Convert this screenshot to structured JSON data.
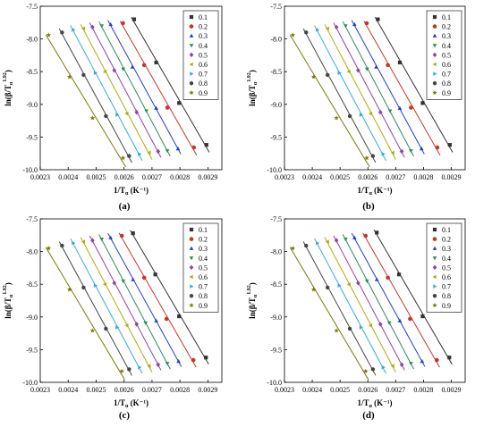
{
  "figure": {
    "panel_labels": [
      "(a)",
      "(b)",
      "(c)",
      "(d)"
    ]
  },
  "chart_data": [
    {
      "type": "scatter",
      "panel": "(a)",
      "xlabel": "1/T",
      "xlabel_sub": "α",
      "xlabel_unit": "(K⁻¹)",
      "ylabel": "ln(β/T",
      "ylabel_sub": "α",
      "ylabel_sup": "1.92",
      "ylabel_close": ")",
      "xlim": [
        0.0023,
        0.00295
      ],
      "ylim": [
        -10.0,
        -7.5
      ],
      "xticks": [
        "0.0023",
        "0.0024",
        "0.0025",
        "0.0026",
        "0.0027",
        "0.0028",
        "0.0029"
      ],
      "yticks": [
        "-10.0",
        "-9.5",
        "-9.0",
        "-8.5",
        "-8.0",
        "-7.5"
      ],
      "legend_position": "top-right",
      "series": [
        {
          "name": "0.1",
          "marker": "square",
          "color": "#333333",
          "x": [
            0.002636,
            0.002715,
            0.002797,
            0.002895
          ],
          "y": [
            -7.7,
            -8.36,
            -8.98,
            -9.62
          ]
        },
        {
          "name": "0.2",
          "marker": "circle",
          "color": "#c0392b",
          "x": [
            0.002596,
            0.002672,
            0.002755,
            0.00285
          ],
          "y": [
            -7.76,
            -8.4,
            -9.05,
            -9.66
          ]
        },
        {
          "name": "0.3",
          "marker": "triangle-up",
          "color": "#1f3fcc",
          "x": [
            0.002552,
            0.00263,
            0.002715,
            0.002793
          ],
          "y": [
            -7.78,
            -8.43,
            -9.06,
            -9.68
          ]
        },
        {
          "name": "0.4",
          "marker": "triangle-down",
          "color": "#2e8b57",
          "x": [
            0.00252,
            0.002597,
            0.00268,
            0.002755
          ],
          "y": [
            -7.8,
            -8.46,
            -9.1,
            -9.71
          ]
        },
        {
          "name": "0.5",
          "marker": "diamond",
          "color": "#8e44ad",
          "x": [
            0.002487,
            0.002565,
            0.002645,
            0.002722
          ],
          "y": [
            -7.82,
            -8.48,
            -9.12,
            -9.72
          ]
        },
        {
          "name": "0.6",
          "marker": "triangle-left",
          "color": "#b5a90f",
          "x": [
            0.002455,
            0.002532,
            0.00261,
            0.00269
          ],
          "y": [
            -7.84,
            -8.5,
            -9.14,
            -9.74
          ]
        },
        {
          "name": "0.7",
          "marker": "triangle-right",
          "color": "#33aadd",
          "x": [
            0.002418,
            0.002497,
            0.002575,
            0.002655
          ],
          "y": [
            -7.86,
            -8.52,
            -9.16,
            -9.76
          ]
        },
        {
          "name": "0.8",
          "marker": "hexagon",
          "color": "#444444",
          "x": [
            0.002378,
            0.002455,
            0.002535,
            0.002618
          ],
          "y": [
            -7.9,
            -8.55,
            -9.18,
            -9.79
          ]
        },
        {
          "name": "0.9",
          "marker": "star",
          "color": "#7a7a0a",
          "x": [
            0.00233,
            0.002405,
            0.002487,
            0.002596
          ],
          "y": [
            -7.94,
            -8.58,
            -9.21,
            -9.82
          ]
        }
      ]
    },
    {
      "type": "scatter",
      "panel": "(b)",
      "xlabel": "1/T",
      "xlabel_sub": "α",
      "xlabel_unit": "(K⁻¹)",
      "ylabel": "ln(β/T",
      "ylabel_sub": "α",
      "ylabel_sup": "1.92",
      "ylabel_close": ")",
      "xlim": [
        0.0023,
        0.00295
      ],
      "ylim": [
        -10.0,
        -7.5
      ],
      "xticks": [
        "0.0023",
        "0.0024",
        "0.0025",
        "0.0026",
        "0.0027",
        "0.0028",
        "0.0029"
      ],
      "yticks": [
        "-10.0",
        "-9.5",
        "-9.0",
        "-8.5",
        "-8.0",
        "-7.5"
      ],
      "legend_position": "top-right",
      "series": [
        {
          "name": "0.1",
          "marker": "square",
          "color": "#333333",
          "x": [
            0.002636,
            0.002715,
            0.002797,
            0.002895
          ],
          "y": [
            -7.7,
            -8.36,
            -8.98,
            -9.62
          ]
        },
        {
          "name": "0.2",
          "marker": "circle",
          "color": "#c0392b",
          "x": [
            0.002596,
            0.002672,
            0.002755,
            0.00285
          ],
          "y": [
            -7.76,
            -8.4,
            -9.05,
            -9.66
          ]
        },
        {
          "name": "0.3",
          "marker": "triangle-up",
          "color": "#1f3fcc",
          "x": [
            0.002552,
            0.00263,
            0.002715,
            0.002793
          ],
          "y": [
            -7.78,
            -8.43,
            -9.06,
            -9.68
          ]
        },
        {
          "name": "0.4",
          "marker": "triangle-down",
          "color": "#2e8b57",
          "x": [
            0.00252,
            0.002597,
            0.00268,
            0.002755
          ],
          "y": [
            -7.8,
            -8.46,
            -9.1,
            -9.71
          ]
        },
        {
          "name": "0.5",
          "marker": "diamond",
          "color": "#8e44ad",
          "x": [
            0.002487,
            0.002565,
            0.002645,
            0.002722
          ],
          "y": [
            -7.82,
            -8.48,
            -9.12,
            -9.72
          ]
        },
        {
          "name": "0.6",
          "marker": "triangle-left",
          "color": "#b5a90f",
          "x": [
            0.002455,
            0.002532,
            0.00261,
            0.00269
          ],
          "y": [
            -7.84,
            -8.5,
            -9.14,
            -9.74
          ]
        },
        {
          "name": "0.7",
          "marker": "triangle-right",
          "color": "#33aadd",
          "x": [
            0.002418,
            0.002497,
            0.002575,
            0.002655
          ],
          "y": [
            -7.86,
            -8.52,
            -9.16,
            -9.76
          ]
        },
        {
          "name": "0.8",
          "marker": "hexagon",
          "color": "#444444",
          "x": [
            0.002378,
            0.002455,
            0.002535,
            0.002618
          ],
          "y": [
            -7.9,
            -8.55,
            -9.18,
            -9.79
          ]
        },
        {
          "name": "0.9",
          "marker": "star",
          "color": "#7a7a0a",
          "x": [
            0.00233,
            0.002405,
            0.002487,
            0.002596
          ],
          "y": [
            -7.94,
            -8.58,
            -9.21,
            -9.82
          ]
        }
      ]
    },
    {
      "type": "scatter",
      "panel": "(c)",
      "xlabel": "1/T",
      "xlabel_sub": "α",
      "xlabel_unit": "(K⁻¹)",
      "ylabel": "ln(β/T",
      "ylabel_sub": "α",
      "ylabel_sup": "1.92",
      "ylabel_close": ")",
      "xlim": [
        0.0023,
        0.00295
      ],
      "ylim": [
        -10.0,
        -7.5
      ],
      "xticks": [
        "0.0023",
        "0.0024",
        "0.0025",
        "0.0026",
        "0.0027",
        "0.0028",
        "0.0029"
      ],
      "yticks": [
        "-10.0",
        "-9.5",
        "-9.0",
        "-8.5",
        "-8.0",
        "-7.5"
      ],
      "legend_position": "top-right",
      "series": [
        {
          "name": "0.1",
          "marker": "square",
          "color": "#333333",
          "x": [
            0.002632,
            0.002712,
            0.002797,
            0.002893
          ],
          "y": [
            -7.72,
            -8.35,
            -8.99,
            -9.62
          ]
        },
        {
          "name": "0.2",
          "marker": "circle",
          "color": "#c0392b",
          "x": [
            0.002592,
            0.002672,
            0.002752,
            0.002848
          ],
          "y": [
            -7.76,
            -8.4,
            -9.03,
            -9.66
          ]
        },
        {
          "name": "0.3",
          "marker": "triangle-up",
          "color": "#1f3fcc",
          "x": [
            0.002552,
            0.002632,
            0.002715,
            0.002795
          ],
          "y": [
            -7.79,
            -8.43,
            -9.06,
            -9.68
          ]
        },
        {
          "name": "0.4",
          "marker": "triangle-down",
          "color": "#2e8b57",
          "x": [
            0.00252,
            0.002597,
            0.002677,
            0.002755
          ],
          "y": [
            -7.81,
            -8.45,
            -9.09,
            -9.71
          ]
        },
        {
          "name": "0.5",
          "marker": "diamond",
          "color": "#8e44ad",
          "x": [
            0.002487,
            0.002565,
            0.002645,
            0.002722
          ],
          "y": [
            -7.83,
            -8.48,
            -9.11,
            -9.73
          ]
        },
        {
          "name": "0.6",
          "marker": "triangle-left",
          "color": "#b5a90f",
          "x": [
            0.002455,
            0.002532,
            0.00261,
            0.00269
          ],
          "y": [
            -7.85,
            -8.5,
            -9.13,
            -9.75
          ]
        },
        {
          "name": "0.7",
          "marker": "triangle-right",
          "color": "#33aadd",
          "x": [
            0.002418,
            0.002497,
            0.002575,
            0.002655
          ],
          "y": [
            -7.87,
            -8.52,
            -9.16,
            -9.77
          ]
        },
        {
          "name": "0.8",
          "marker": "hexagon",
          "color": "#444444",
          "x": [
            0.002378,
            0.002455,
            0.002535,
            0.002618
          ],
          "y": [
            -7.91,
            -8.55,
            -9.18,
            -9.8
          ]
        },
        {
          "name": "0.9",
          "marker": "star",
          "color": "#7a7a0a",
          "x": [
            0.00233,
            0.002405,
            0.002487,
            0.002592
          ],
          "y": [
            -7.95,
            -8.58,
            -9.21,
            -9.83
          ]
        }
      ]
    },
    {
      "type": "scatter",
      "panel": "(d)",
      "xlabel": "1/T",
      "xlabel_sub": "α",
      "xlabel_unit": "(K⁻¹)",
      "ylabel": "ln(β/T",
      "ylabel_sub": "α",
      "ylabel_sup": "1.92",
      "ylabel_close": ")",
      "xlim": [
        0.0023,
        0.00295
      ],
      "ylim": [
        -10.0,
        -7.5
      ],
      "xticks": [
        "0.0023",
        "0.0024",
        "0.0025",
        "0.0026",
        "0.0027",
        "0.0028",
        "0.0029"
      ],
      "yticks": [
        "-10.0",
        "-9.5",
        "-9.0",
        "-8.5",
        "-8.0",
        "-7.5"
      ],
      "legend_position": "top-right",
      "series": [
        {
          "name": "0.1",
          "marker": "square",
          "color": "#333333",
          "x": [
            0.002632,
            0.002712,
            0.002797,
            0.002893
          ],
          "y": [
            -7.71,
            -8.35,
            -8.99,
            -9.62
          ]
        },
        {
          "name": "0.2",
          "marker": "circle",
          "color": "#c0392b",
          "x": [
            0.002592,
            0.002672,
            0.002752,
            0.002848
          ],
          "y": [
            -7.76,
            -8.4,
            -9.03,
            -9.66
          ]
        },
        {
          "name": "0.3",
          "marker": "triangle-up",
          "color": "#1f3fcc",
          "x": [
            0.002552,
            0.002632,
            0.002715,
            0.002795
          ],
          "y": [
            -7.79,
            -8.43,
            -9.06,
            -9.68
          ]
        },
        {
          "name": "0.4",
          "marker": "triangle-down",
          "color": "#2e8b57",
          "x": [
            0.00252,
            0.002597,
            0.002677,
            0.002755
          ],
          "y": [
            -7.81,
            -8.45,
            -9.09,
            -9.71
          ]
        },
        {
          "name": "0.5",
          "marker": "diamond",
          "color": "#8e44ad",
          "x": [
            0.002487,
            0.002565,
            0.002645,
            0.002722
          ],
          "y": [
            -7.83,
            -8.48,
            -9.11,
            -9.73
          ]
        },
        {
          "name": "0.6",
          "marker": "triangle-left",
          "color": "#b5a90f",
          "x": [
            0.002455,
            0.002532,
            0.00261,
            0.00269
          ],
          "y": [
            -7.85,
            -8.5,
            -9.13,
            -9.75
          ]
        },
        {
          "name": "0.7",
          "marker": "triangle-right",
          "color": "#33aadd",
          "x": [
            0.002418,
            0.002497,
            0.002575,
            0.002655
          ],
          "y": [
            -7.87,
            -8.52,
            -9.16,
            -9.77
          ]
        },
        {
          "name": "0.8",
          "marker": "hexagon",
          "color": "#444444",
          "x": [
            0.002378,
            0.002455,
            0.002535,
            0.002618
          ],
          "y": [
            -7.91,
            -8.55,
            -9.18,
            -9.8
          ]
        },
        {
          "name": "0.9",
          "marker": "star",
          "color": "#7a7a0a",
          "x": [
            0.00233,
            0.002405,
            0.002487,
            0.002592
          ],
          "y": [
            -7.95,
            -8.58,
            -9.21,
            -9.83
          ]
        }
      ]
    }
  ]
}
